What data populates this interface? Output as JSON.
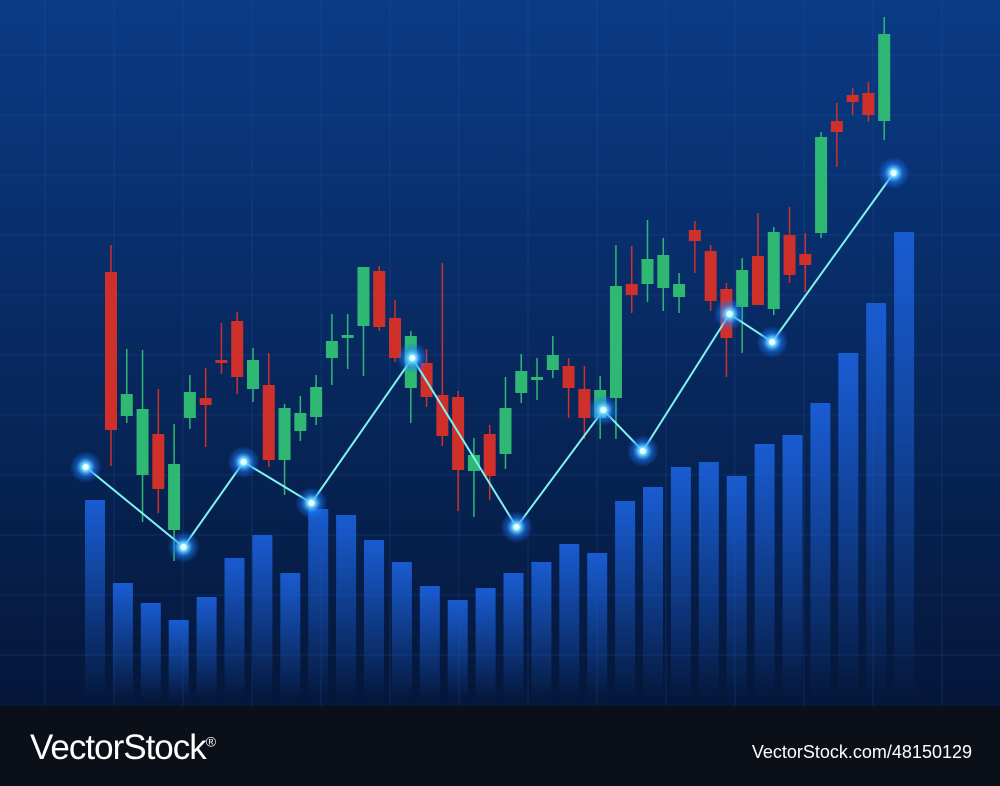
{
  "chart_data": {
    "type": "candlestick",
    "title": "",
    "xlabel": "",
    "ylabel": "",
    "grid": true,
    "candles_ohlc": [
      [
        448,
        475,
        254,
        290
      ],
      [
        304,
        371,
        297,
        326
      ],
      [
        245,
        370,
        198,
        311
      ],
      [
        286,
        331,
        207,
        231
      ],
      [
        190,
        296,
        159,
        256
      ],
      [
        302,
        345,
        291,
        328
      ],
      [
        322,
        352,
        273,
        315
      ],
      [
        360,
        397,
        346,
        357
      ],
      [
        399,
        408,
        326,
        343
      ],
      [
        331,
        372,
        318,
        360
      ],
      [
        335,
        367,
        253,
        260
      ],
      [
        260,
        316,
        225,
        312
      ],
      [
        289,
        324,
        279,
        307
      ],
      [
        303,
        345,
        295,
        333
      ],
      [
        362,
        406,
        335,
        379
      ],
      [
        383,
        406,
        351,
        385
      ],
      [
        394,
        453,
        344,
        453
      ],
      [
        449,
        454,
        389,
        393
      ],
      [
        402,
        420,
        358,
        362
      ],
      [
        332,
        389,
        297,
        384
      ],
      [
        357,
        371,
        313,
        323
      ],
      [
        325,
        457,
        274,
        284
      ],
      [
        323,
        329,
        209,
        250
      ],
      [
        249,
        282,
        203,
        265
      ],
      [
        286,
        295,
        220,
        244
      ],
      [
        266,
        343,
        251,
        312
      ],
      [
        327,
        366,
        317,
        349
      ],
      [
        340,
        362,
        320,
        343
      ],
      [
        350,
        384,
        342,
        365
      ],
      [
        354,
        362,
        302,
        332
      ],
      [
        331,
        354,
        281,
        302
      ],
      [
        302,
        344,
        281,
        330
      ],
      [
        322,
        475,
        281,
        434
      ],
      [
        436,
        474,
        407,
        425
      ],
      [
        436,
        500,
        418,
        461
      ],
      [
        432,
        482,
        409,
        465
      ],
      [
        423,
        447,
        407,
        436
      ],
      [
        490,
        499,
        447,
        479
      ],
      [
        469,
        475,
        409,
        419
      ],
      [
        431,
        437,
        343,
        382
      ],
      [
        413,
        462,
        367,
        450
      ],
      [
        464,
        507,
        415,
        415
      ],
      [
        411,
        493,
        405,
        488
      ],
      [
        485,
        513,
        437,
        445
      ],
      [
        466,
        487,
        428,
        455
      ],
      [
        487,
        588,
        482,
        583
      ],
      [
        599,
        617,
        553,
        588
      ],
      [
        625,
        632,
        605,
        618
      ],
      [
        627,
        638,
        598,
        605
      ],
      [
        599,
        703,
        580,
        686
      ]
    ],
    "trend_line": {
      "x": [
        -0.6,
        5.6,
        9.4,
        13.7,
        20.1,
        26.7,
        32.2,
        34.7,
        40.2,
        42.9,
        50.6
      ],
      "y": [
        253,
        173,
        258,
        217,
        362,
        193,
        310,
        269,
        406,
        378,
        547
      ]
    },
    "volume_bars": [
      200,
      117,
      97,
      80,
      103,
      142,
      165,
      127,
      191,
      185,
      160,
      138,
      114,
      100,
      112,
      127,
      138,
      156,
      147,
      199,
      213,
      233,
      238,
      224,
      256,
      265,
      297,
      347,
      397,
      468
    ],
    "colors": {
      "up": "#2fb874",
      "down": "#d0302a",
      "line": "#7ef3f0",
      "volume": "#1a5fd8",
      "bg_top": "#0a3b86",
      "bg_bottom": "#05173a"
    }
  },
  "footer": {
    "logo": "VectorStock",
    "logo_mark": "®",
    "image_id": "VectorStock.com/48150129"
  }
}
